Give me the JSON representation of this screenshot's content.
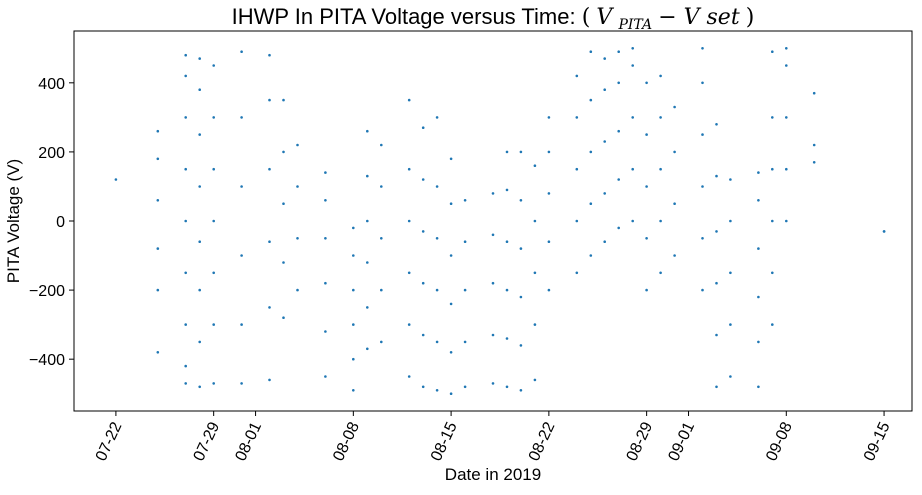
{
  "chart_data": {
    "type": "scatter",
    "title": "IHWP In PITA Voltage versus Time: (V_PITA − V set)",
    "title_parts": {
      "main": "IHWP In PITA Voltage versus Time: ",
      "math_open": "(",
      "math_v1": "V",
      "math_sub": "PITA",
      "math_minus": " − ",
      "math_v2": "V set",
      "math_close": ")"
    },
    "xlabel": "Date in 2019",
    "ylabel": "PITA Voltage (V)",
    "x_type": "date",
    "xlim": [
      "2019-07-19",
      "2019-09-17"
    ],
    "ylim": [
      -550,
      550
    ],
    "x_ticks": [
      "2019-07-22",
      "2019-07-29",
      "2019-08-01",
      "2019-08-08",
      "2019-08-15",
      "2019-08-22",
      "2019-08-29",
      "2019-09-01",
      "2019-09-08",
      "2019-09-15"
    ],
    "x_tick_labels": [
      "07-22",
      "07-29",
      "08-01",
      "08-08",
      "08-15",
      "08-22",
      "08-29",
      "09-01",
      "09-08",
      "09-15"
    ],
    "y_ticks": [
      -400,
      -200,
      0,
      200,
      400
    ],
    "y_tick_labels": [
      "−400",
      "−200",
      "0",
      "200",
      "400"
    ],
    "grid": false,
    "legend": "none",
    "marker_color": "#1f77b4",
    "series": [
      {
        "points": [
          [
            "2019-07-22",
            120
          ],
          [
            "2019-07-25",
            -380
          ],
          [
            "2019-07-25",
            -200
          ],
          [
            "2019-07-25",
            -80
          ],
          [
            "2019-07-25",
            60
          ],
          [
            "2019-07-25",
            180
          ],
          [
            "2019-07-25",
            260
          ],
          [
            "2019-07-27",
            -470
          ],
          [
            "2019-07-27",
            -420
          ],
          [
            "2019-07-27",
            -300
          ],
          [
            "2019-07-27",
            -150
          ],
          [
            "2019-07-27",
            0
          ],
          [
            "2019-07-27",
            150
          ],
          [
            "2019-07-27",
            300
          ],
          [
            "2019-07-27",
            420
          ],
          [
            "2019-07-27",
            480
          ],
          [
            "2019-07-28",
            -480
          ],
          [
            "2019-07-28",
            -350
          ],
          [
            "2019-07-28",
            -200
          ],
          [
            "2019-07-28",
            -60
          ],
          [
            "2019-07-28",
            100
          ],
          [
            "2019-07-28",
            250
          ],
          [
            "2019-07-28",
            380
          ],
          [
            "2019-07-28",
            470
          ],
          [
            "2019-07-29",
            -470
          ],
          [
            "2019-07-29",
            -300
          ],
          [
            "2019-07-29",
            -150
          ],
          [
            "2019-07-29",
            0
          ],
          [
            "2019-07-29",
            150
          ],
          [
            "2019-07-29",
            300
          ],
          [
            "2019-07-29",
            450
          ],
          [
            "2019-07-31",
            -470
          ],
          [
            "2019-07-31",
            -300
          ],
          [
            "2019-07-31",
            -100
          ],
          [
            "2019-07-31",
            100
          ],
          [
            "2019-07-31",
            300
          ],
          [
            "2019-07-31",
            490
          ],
          [
            "2019-08-02",
            -460
          ],
          [
            "2019-08-02",
            -250
          ],
          [
            "2019-08-02",
            -60
          ],
          [
            "2019-08-02",
            150
          ],
          [
            "2019-08-02",
            350
          ],
          [
            "2019-08-02",
            480
          ],
          [
            "2019-08-03",
            -280
          ],
          [
            "2019-08-03",
            -120
          ],
          [
            "2019-08-03",
            50
          ],
          [
            "2019-08-03",
            200
          ],
          [
            "2019-08-03",
            350
          ],
          [
            "2019-08-04",
            -200
          ],
          [
            "2019-08-04",
            -50
          ],
          [
            "2019-08-04",
            100
          ],
          [
            "2019-08-04",
            220
          ],
          [
            "2019-08-06",
            -450
          ],
          [
            "2019-08-06",
            -320
          ],
          [
            "2019-08-06",
            -180
          ],
          [
            "2019-08-06",
            -50
          ],
          [
            "2019-08-06",
            60
          ],
          [
            "2019-08-06",
            140
          ],
          [
            "2019-08-08",
            -490
          ],
          [
            "2019-08-08",
            -400
          ],
          [
            "2019-08-08",
            -300
          ],
          [
            "2019-08-08",
            -200
          ],
          [
            "2019-08-08",
            -100
          ],
          [
            "2019-08-08",
            -20
          ],
          [
            "2019-08-09",
            -370
          ],
          [
            "2019-08-09",
            -250
          ],
          [
            "2019-08-09",
            -120
          ],
          [
            "2019-08-09",
            0
          ],
          [
            "2019-08-09",
            130
          ],
          [
            "2019-08-09",
            260
          ],
          [
            "2019-08-10",
            -350
          ],
          [
            "2019-08-10",
            -200
          ],
          [
            "2019-08-10",
            -50
          ],
          [
            "2019-08-10",
            100
          ],
          [
            "2019-08-10",
            220
          ],
          [
            "2019-08-12",
            -450
          ],
          [
            "2019-08-12",
            -300
          ],
          [
            "2019-08-12",
            -150
          ],
          [
            "2019-08-12",
            0
          ],
          [
            "2019-08-12",
            150
          ],
          [
            "2019-08-12",
            350
          ],
          [
            "2019-08-13",
            -480
          ],
          [
            "2019-08-13",
            -330
          ],
          [
            "2019-08-13",
            -180
          ],
          [
            "2019-08-13",
            -30
          ],
          [
            "2019-08-13",
            120
          ],
          [
            "2019-08-13",
            270
          ],
          [
            "2019-08-14",
            -490
          ],
          [
            "2019-08-14",
            -350
          ],
          [
            "2019-08-14",
            -200
          ],
          [
            "2019-08-14",
            -50
          ],
          [
            "2019-08-14",
            100
          ],
          [
            "2019-08-14",
            300
          ],
          [
            "2019-08-15",
            -500
          ],
          [
            "2019-08-15",
            -380
          ],
          [
            "2019-08-15",
            -240
          ],
          [
            "2019-08-15",
            -100
          ],
          [
            "2019-08-15",
            50
          ],
          [
            "2019-08-15",
            180
          ],
          [
            "2019-08-16",
            -480
          ],
          [
            "2019-08-16",
            -350
          ],
          [
            "2019-08-16",
            -200
          ],
          [
            "2019-08-16",
            -60
          ],
          [
            "2019-08-16",
            60
          ],
          [
            "2019-08-18",
            -470
          ],
          [
            "2019-08-18",
            -330
          ],
          [
            "2019-08-18",
            -180
          ],
          [
            "2019-08-18",
            -40
          ],
          [
            "2019-08-18",
            80
          ],
          [
            "2019-08-19",
            -480
          ],
          [
            "2019-08-19",
            -340
          ],
          [
            "2019-08-19",
            -200
          ],
          [
            "2019-08-19",
            -60
          ],
          [
            "2019-08-19",
            90
          ],
          [
            "2019-08-19",
            200
          ],
          [
            "2019-08-20",
            -490
          ],
          [
            "2019-08-20",
            -360
          ],
          [
            "2019-08-20",
            -220
          ],
          [
            "2019-08-20",
            -80
          ],
          [
            "2019-08-20",
            60
          ],
          [
            "2019-08-20",
            200
          ],
          [
            "2019-08-21",
            -460
          ],
          [
            "2019-08-21",
            -300
          ],
          [
            "2019-08-21",
            -150
          ],
          [
            "2019-08-21",
            0
          ],
          [
            "2019-08-21",
            160
          ],
          [
            "2019-08-22",
            -200
          ],
          [
            "2019-08-22",
            -60
          ],
          [
            "2019-08-22",
            80
          ],
          [
            "2019-08-22",
            200
          ],
          [
            "2019-08-22",
            300
          ],
          [
            "2019-08-24",
            -150
          ],
          [
            "2019-08-24",
            0
          ],
          [
            "2019-08-24",
            150
          ],
          [
            "2019-08-24",
            300
          ],
          [
            "2019-08-24",
            420
          ],
          [
            "2019-08-25",
            -100
          ],
          [
            "2019-08-25",
            50
          ],
          [
            "2019-08-25",
            200
          ],
          [
            "2019-08-25",
            350
          ],
          [
            "2019-08-25",
            490
          ],
          [
            "2019-08-26",
            -60
          ],
          [
            "2019-08-26",
            80
          ],
          [
            "2019-08-26",
            230
          ],
          [
            "2019-08-26",
            380
          ],
          [
            "2019-08-26",
            470
          ],
          [
            "2019-08-27",
            -20
          ],
          [
            "2019-08-27",
            120
          ],
          [
            "2019-08-27",
            260
          ],
          [
            "2019-08-27",
            400
          ],
          [
            "2019-08-27",
            490
          ],
          [
            "2019-08-28",
            0
          ],
          [
            "2019-08-28",
            150
          ],
          [
            "2019-08-28",
            300
          ],
          [
            "2019-08-28",
            450
          ],
          [
            "2019-08-28",
            500
          ],
          [
            "2019-08-29",
            -200
          ],
          [
            "2019-08-29",
            -50
          ],
          [
            "2019-08-29",
            100
          ],
          [
            "2019-08-29",
            250
          ],
          [
            "2019-08-29",
            400
          ],
          [
            "2019-08-30",
            -150
          ],
          [
            "2019-08-30",
            0
          ],
          [
            "2019-08-30",
            150
          ],
          [
            "2019-08-30",
            300
          ],
          [
            "2019-08-30",
            420
          ],
          [
            "2019-08-31",
            -100
          ],
          [
            "2019-08-31",
            50
          ],
          [
            "2019-08-31",
            200
          ],
          [
            "2019-08-31",
            330
          ],
          [
            "2019-09-02",
            -200
          ],
          [
            "2019-09-02",
            -50
          ],
          [
            "2019-09-02",
            100
          ],
          [
            "2019-09-02",
            250
          ],
          [
            "2019-09-02",
            400
          ],
          [
            "2019-09-02",
            500
          ],
          [
            "2019-09-03",
            -480
          ],
          [
            "2019-09-03",
            -330
          ],
          [
            "2019-09-03",
            -180
          ],
          [
            "2019-09-03",
            -30
          ],
          [
            "2019-09-03",
            130
          ],
          [
            "2019-09-03",
            280
          ],
          [
            "2019-09-04",
            -450
          ],
          [
            "2019-09-04",
            -300
          ],
          [
            "2019-09-04",
            -150
          ],
          [
            "2019-09-04",
            0
          ],
          [
            "2019-09-04",
            120
          ],
          [
            "2019-09-06",
            -480
          ],
          [
            "2019-09-06",
            -350
          ],
          [
            "2019-09-06",
            -220
          ],
          [
            "2019-09-06",
            -80
          ],
          [
            "2019-09-06",
            60
          ],
          [
            "2019-09-06",
            140
          ],
          [
            "2019-09-07",
            -300
          ],
          [
            "2019-09-07",
            -150
          ],
          [
            "2019-09-07",
            0
          ],
          [
            "2019-09-07",
            150
          ],
          [
            "2019-09-07",
            300
          ],
          [
            "2019-09-07",
            490
          ],
          [
            "2019-09-08",
            0
          ],
          [
            "2019-09-08",
            150
          ],
          [
            "2019-09-08",
            300
          ],
          [
            "2019-09-08",
            450
          ],
          [
            "2019-09-08",
            500
          ],
          [
            "2019-09-10",
            370
          ],
          [
            "2019-09-10",
            220
          ],
          [
            "2019-09-10",
            170
          ],
          [
            "2019-09-15",
            -30
          ],
          [
            "2019-09-15",
            -30
          ]
        ]
      }
    ]
  }
}
